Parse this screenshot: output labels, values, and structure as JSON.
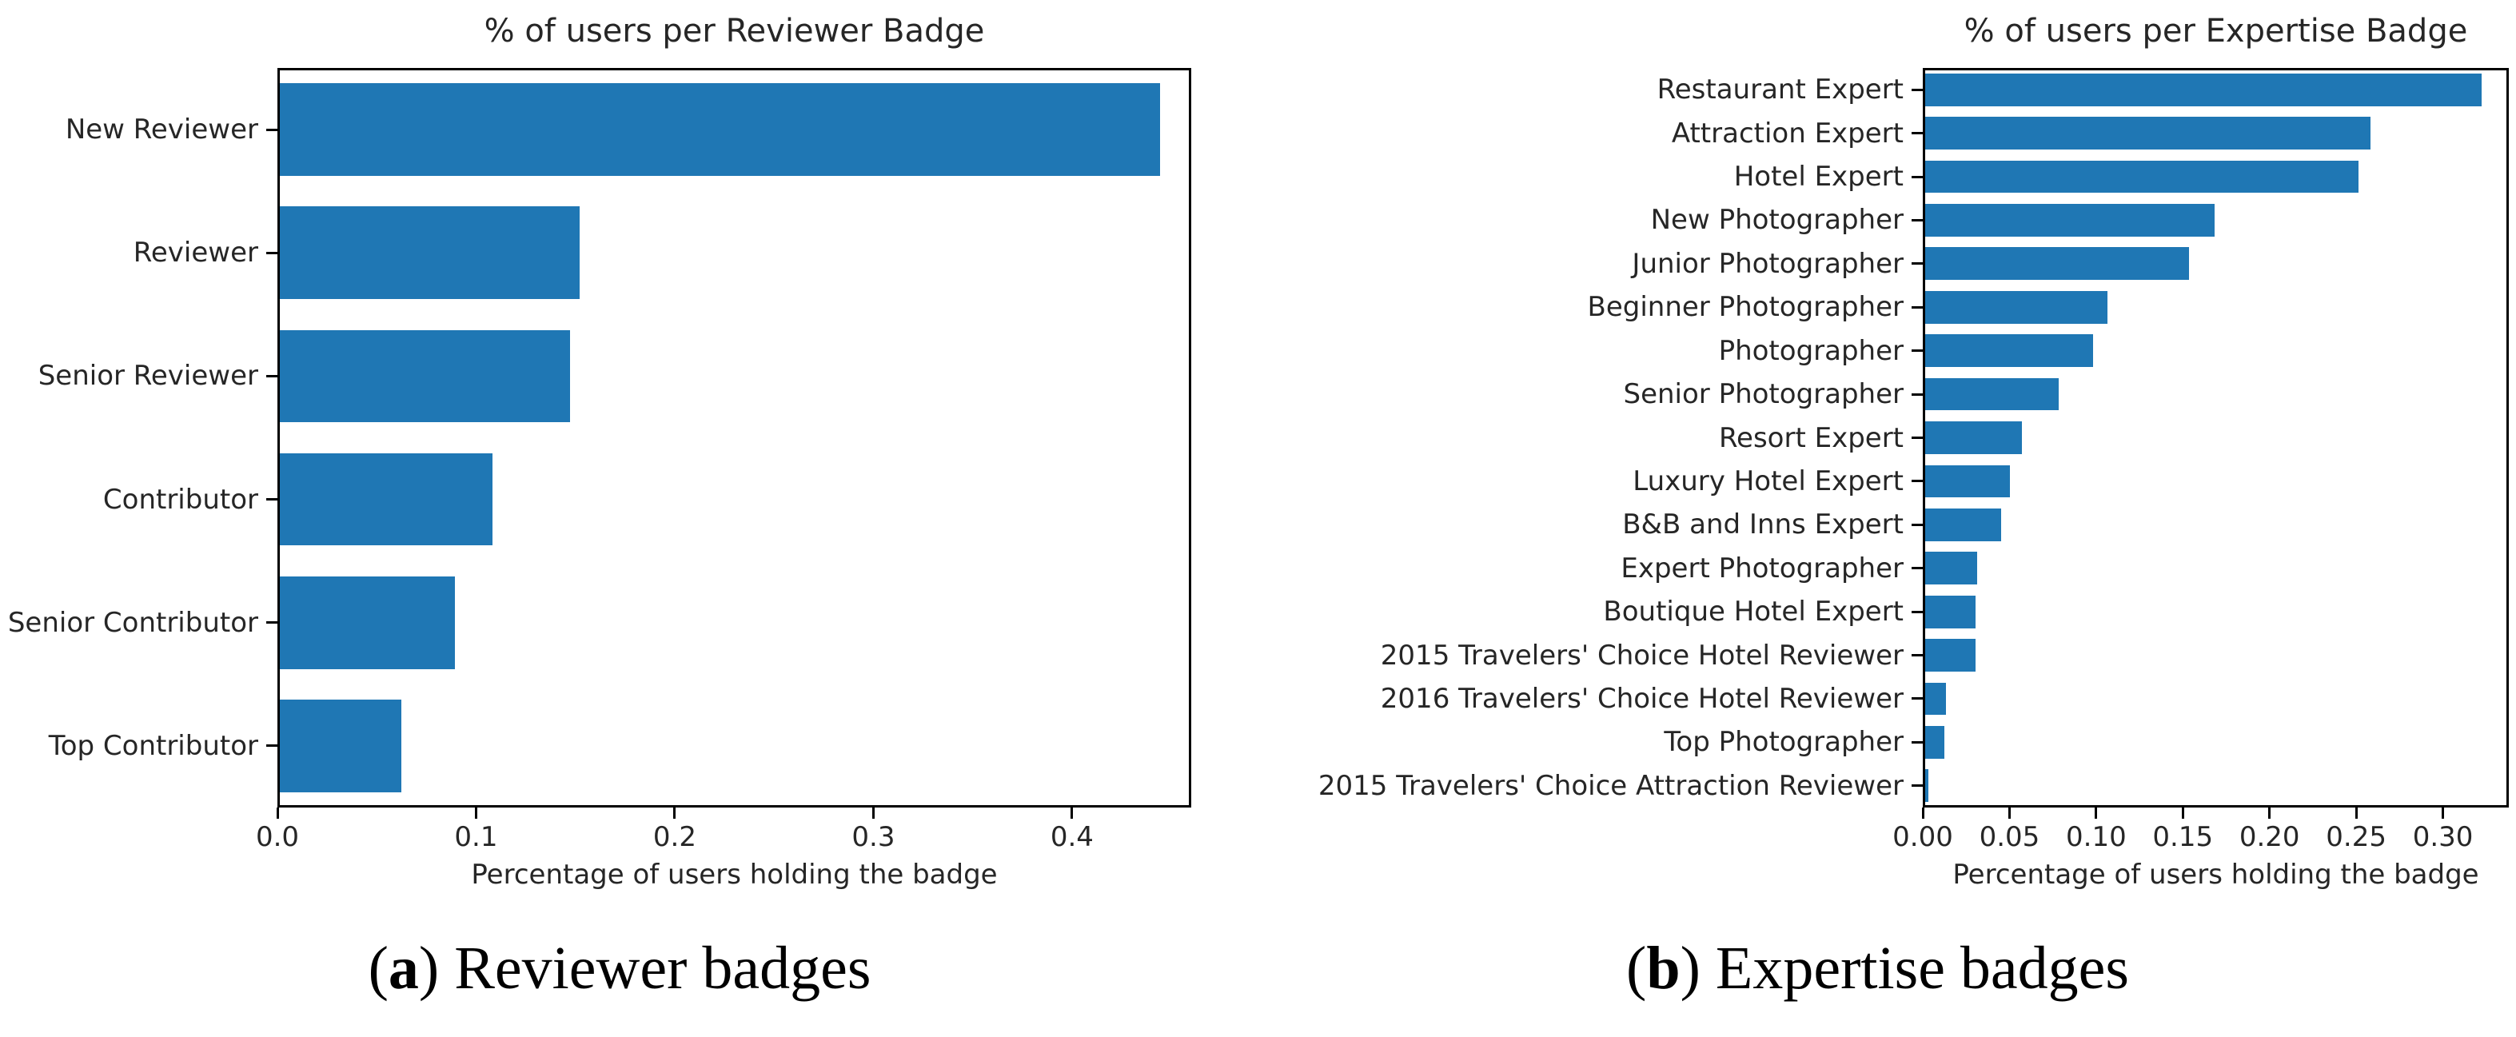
{
  "chart_data": [
    {
      "type": "bar",
      "orientation": "horizontal",
      "title": "% of users per Reviewer Badge",
      "xlabel": "Percentage of users holding the badge",
      "caption": {
        "open": "(",
        "letter": "a",
        "close": ")",
        "text": " Reviewer badges"
      },
      "categories": [
        "New Reviewer",
        "Reviewer",
        "Senior Reviewer",
        "Contributor",
        "Senior Contributor",
        "Top Contributor"
      ],
      "values": [
        0.443,
        0.151,
        0.146,
        0.107,
        0.088,
        0.061
      ],
      "xlim": [
        0,
        0.46
      ],
      "tick_values": [
        0,
        0.1,
        0.2,
        0.3,
        0.4
      ],
      "tick_labels": [
        "0.0",
        "0.1",
        "0.2",
        "0.3",
        "0.4"
      ],
      "bar_color": "#1f77b4",
      "grid": false,
      "legend": null
    },
    {
      "type": "bar",
      "orientation": "horizontal",
      "title": "% of users per Expertise Badge",
      "xlabel": "Percentage of users holding the badge",
      "caption": {
        "open": "(",
        "letter": "b",
        "close": ")",
        "text": " Expertise badges"
      },
      "categories": [
        "Restaurant Expert",
        "Attraction Expert",
        "Hotel Expert",
        "New Photographer",
        "Junior Photographer",
        "Beginner Photographer",
        "Photographer",
        "Senior Photographer",
        "Resort Expert",
        "Luxury Hotel Expert",
        "B&B and Inns Expert",
        "Expert Photographer",
        "Boutique Hotel Expert",
        "2015 Travelers' Choice Hotel Reviewer",
        "2016 Travelers' Choice Hotel Reviewer",
        "Top Photographer",
        "2015 Travelers' Choice Attraction Reviewer"
      ],
      "values": [
        0.321,
        0.257,
        0.25,
        0.167,
        0.152,
        0.105,
        0.097,
        0.077,
        0.056,
        0.049,
        0.044,
        0.03,
        0.029,
        0.029,
        0.012,
        0.011,
        0.002
      ],
      "xlim": [
        0,
        0.338
      ],
      "tick_values": [
        0,
        0.05,
        0.1,
        0.15,
        0.2,
        0.25,
        0.3
      ],
      "tick_labels": [
        "0.00",
        "0.05",
        "0.10",
        "0.15",
        "0.20",
        "0.25",
        "0.30"
      ],
      "bar_color": "#1f77b4",
      "grid": false,
      "legend": null
    }
  ]
}
